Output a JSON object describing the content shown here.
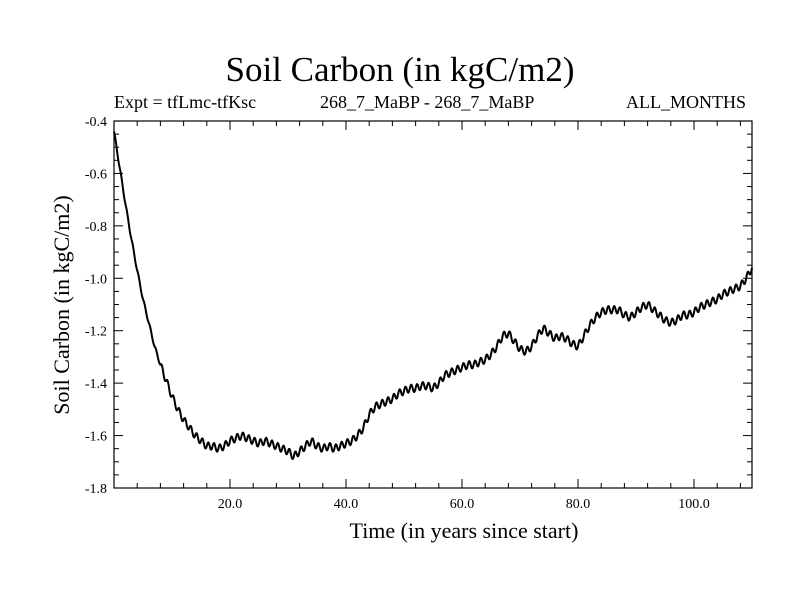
{
  "chart_data": {
    "type": "line",
    "title": "Soil Carbon (in kgC/m2)",
    "subtitle_left": "Expt = tfLmc-tfKsc",
    "subtitle_center": "268_7_MaBP - 268_7_MaBP",
    "subtitle_right": "ALL_MONTHS",
    "xlabel": "Time (in years since start)",
    "ylabel": "Soil Carbon (in kgC/m2)",
    "xlim": [
      0,
      110
    ],
    "ylim": [
      -1.8,
      -0.4
    ],
    "x_ticks": [
      20,
      40,
      60,
      80,
      100
    ],
    "x_tick_labels": [
      "20.0",
      "40.0",
      "60.0",
      "80.0",
      "100.0"
    ],
    "y_ticks": [
      -1.8,
      -1.6,
      -1.4,
      -1.2,
      -1.0,
      -0.8,
      -0.6,
      -0.4
    ],
    "y_tick_labels": [
      "-1.8",
      "-1.6",
      "-1.4",
      "-1.2",
      "-1.0",
      "-0.8",
      "-0.6",
      "-0.4"
    ],
    "series": [
      {
        "name": "Soil Carbon",
        "x": [
          0,
          1,
          2,
          3,
          4,
          5,
          6,
          7,
          8,
          9,
          10,
          11,
          12,
          13,
          14,
          15,
          16,
          17,
          18,
          19,
          20,
          21,
          22,
          23,
          24,
          25,
          26,
          27,
          28,
          29,
          30,
          31,
          32,
          33,
          34,
          35,
          36,
          37,
          38,
          39,
          40,
          41,
          42,
          43,
          44,
          45,
          46,
          47,
          48,
          49,
          50,
          51,
          52,
          53,
          54,
          55,
          56,
          57,
          58,
          59,
          60,
          61,
          62,
          63,
          64,
          65,
          66,
          67,
          68,
          69,
          70,
          71,
          72,
          73,
          74,
          75,
          76,
          77,
          78,
          79,
          80,
          81,
          82,
          83,
          84,
          85,
          86,
          87,
          88,
          89,
          90,
          91,
          92,
          93,
          94,
          95,
          96,
          97,
          98,
          99,
          100,
          101,
          102,
          103,
          104,
          105,
          106,
          107,
          108,
          109,
          110
        ],
        "values": [
          -0.44,
          -0.58,
          -0.72,
          -0.85,
          -0.97,
          -1.08,
          -1.17,
          -1.26,
          -1.33,
          -1.39,
          -1.45,
          -1.5,
          -1.54,
          -1.57,
          -1.6,
          -1.62,
          -1.64,
          -1.64,
          -1.65,
          -1.64,
          -1.62,
          -1.61,
          -1.6,
          -1.61,
          -1.62,
          -1.63,
          -1.62,
          -1.63,
          -1.64,
          -1.65,
          -1.66,
          -1.68,
          -1.66,
          -1.64,
          -1.62,
          -1.64,
          -1.65,
          -1.64,
          -1.65,
          -1.64,
          -1.63,
          -1.62,
          -1.6,
          -1.57,
          -1.52,
          -1.49,
          -1.48,
          -1.47,
          -1.46,
          -1.44,
          -1.43,
          -1.42,
          -1.42,
          -1.41,
          -1.41,
          -1.42,
          -1.4,
          -1.37,
          -1.36,
          -1.35,
          -1.34,
          -1.33,
          -1.33,
          -1.32,
          -1.31,
          -1.29,
          -1.26,
          -1.22,
          -1.21,
          -1.24,
          -1.27,
          -1.28,
          -1.26,
          -1.22,
          -1.19,
          -1.21,
          -1.23,
          -1.22,
          -1.23,
          -1.25,
          -1.26,
          -1.22,
          -1.18,
          -1.15,
          -1.13,
          -1.12,
          -1.12,
          -1.12,
          -1.14,
          -1.15,
          -1.13,
          -1.11,
          -1.1,
          -1.12,
          -1.14,
          -1.16,
          -1.17,
          -1.16,
          -1.14,
          -1.14,
          -1.13,
          -1.11,
          -1.1,
          -1.09,
          -1.08,
          -1.06,
          -1.05,
          -1.04,
          -1.03,
          -1.0,
          -0.96
        ]
      }
    ]
  }
}
